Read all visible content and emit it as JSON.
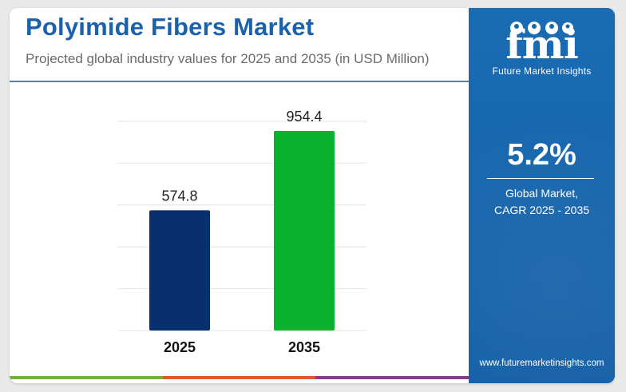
{
  "header": {
    "title": "Polyimide Fibers Market",
    "subtitle": "Projected global industry values for 2025 and 2035 (in USD Million)"
  },
  "chart_data": {
    "type": "bar",
    "categories": [
      "2025",
      "2035"
    ],
    "values": [
      574.8,
      954.4
    ],
    "data_labels": [
      "574.8",
      "954.4"
    ],
    "colors": [
      "#08306e",
      "#0ab32d"
    ],
    "title": "Polyimide Fibers Market",
    "subtitle": "Projected global industry values for 2025 and 2035 (in USD Million)",
    "xlabel": "",
    "ylabel": "",
    "ylim": [
      0,
      1000
    ],
    "grid": true,
    "legend": "none"
  },
  "sidebar": {
    "logo_mark": "fmi",
    "logo_text": "Future Market Insights",
    "cagr_value": "5.2%",
    "cagr_label_line1": "Global Market,",
    "cagr_label_line2": "CAGR 2025 - 2035",
    "website": "www.futuremarketinsights.com"
  },
  "bottom_bar_colors": [
    "#6bb13a",
    "#e0592a",
    "#8a3a91"
  ],
  "accent_color": "#1b62ad"
}
